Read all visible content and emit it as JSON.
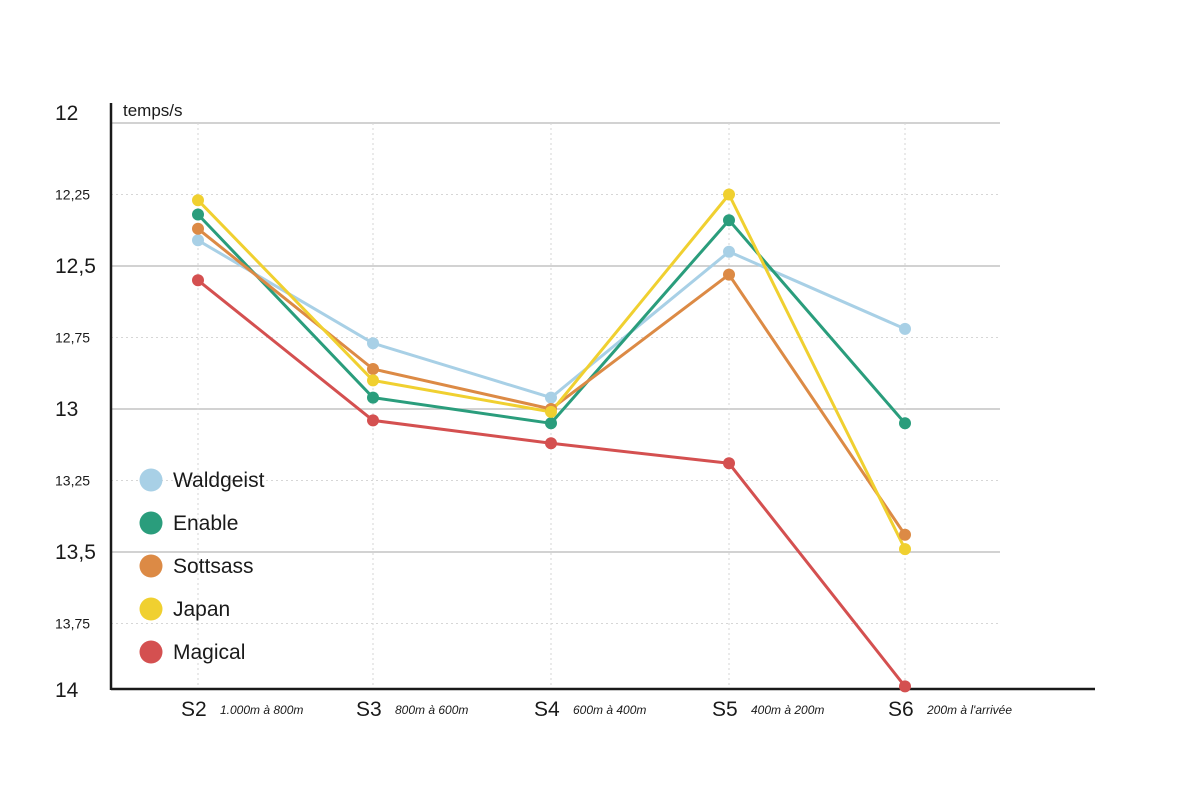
{
  "chart_data": {
    "type": "line",
    "title": "",
    "ylabel": "temps/s",
    "xlabel": "",
    "ylim": [
      12,
      14
    ],
    "y_inverted": true,
    "y_ticks": [
      {
        "value": 12,
        "label": "12",
        "major": true
      },
      {
        "value": 12.25,
        "label": "12,25",
        "major": false
      },
      {
        "value": 12.5,
        "label": "12,5",
        "major": true
      },
      {
        "value": 12.75,
        "label": "12,75",
        "major": false
      },
      {
        "value": 13,
        "label": "13",
        "major": true
      },
      {
        "value": 13.25,
        "label": "13,25",
        "major": false
      },
      {
        "value": 13.5,
        "label": "13,5",
        "major": true
      },
      {
        "value": 13.75,
        "label": "13,75",
        "major": false
      },
      {
        "value": 14,
        "label": "14",
        "major": true
      }
    ],
    "categories": [
      {
        "name": "S2",
        "sub": "1.000m à 800m"
      },
      {
        "name": "S3",
        "sub": "800m à 600m"
      },
      {
        "name": "S4",
        "sub": "600m à 400m"
      },
      {
        "name": "S5",
        "sub": "400m à 200m"
      },
      {
        "name": "S6",
        "sub": "200m à l'arrivée"
      }
    ],
    "series": [
      {
        "name": "Waldgeist",
        "color": "#a8d0e6",
        "values": [
          12.41,
          12.77,
          12.96,
          12.45,
          12.72
        ]
      },
      {
        "name": "Enable",
        "color": "#2a9d7c",
        "values": [
          12.32,
          12.96,
          13.05,
          12.34,
          13.05
        ]
      },
      {
        "name": "Sottsass",
        "color": "#dc8a45",
        "values": [
          12.37,
          12.86,
          13.0,
          12.53,
          13.44
        ]
      },
      {
        "name": "Japan",
        "color": "#f0d030",
        "values": [
          12.27,
          12.9,
          13.01,
          12.25,
          13.49
        ]
      },
      {
        "name": "Magical",
        "color": "#d45050",
        "values": [
          12.55,
          13.04,
          13.12,
          13.19,
          13.97
        ]
      }
    ],
    "legend": "bottom-left"
  }
}
